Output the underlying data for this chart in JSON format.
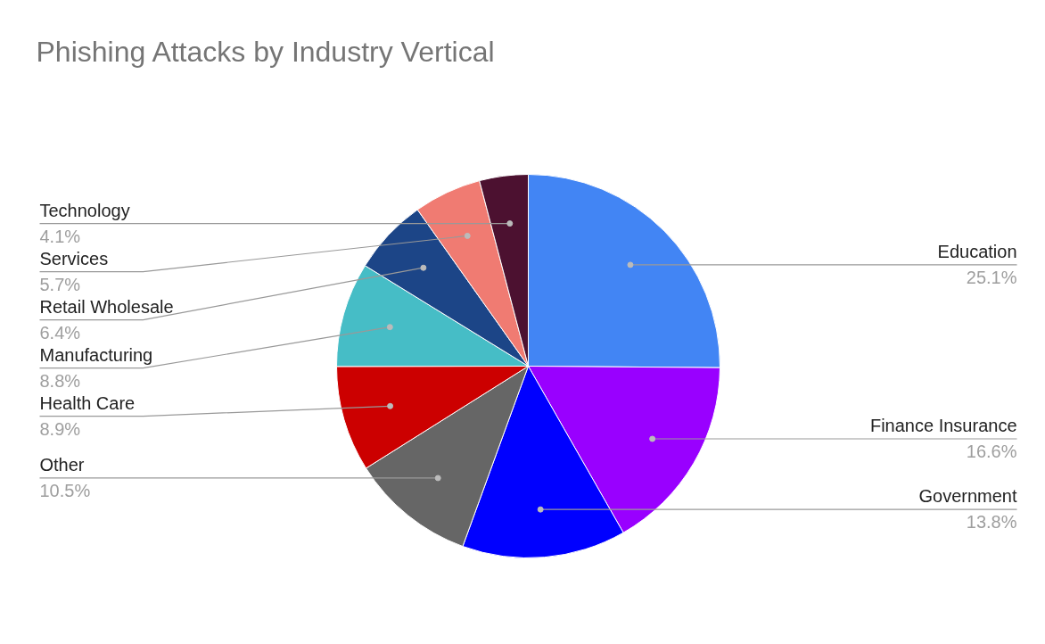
{
  "chart_data": {
    "type": "pie",
    "title": "Phishing Attacks by Industry Vertical",
    "categories": [
      "Education",
      "Finance Insurance",
      "Government",
      "Other",
      "Health Care",
      "Manufacturing",
      "Retail Wholesale",
      "Services",
      "Technology"
    ],
    "values": [
      25.1,
      16.6,
      13.8,
      10.5,
      8.9,
      8.8,
      6.4,
      5.7,
      4.1
    ],
    "value_labels": [
      "25.1%",
      "16.6%",
      "13.8%",
      "10.5%",
      "8.9%",
      "8.8%",
      "6.4%",
      "5.7%",
      "4.1%"
    ],
    "colors": [
      "#4285f4",
      "#9900ff",
      "#0000ff",
      "#666666",
      "#cc0000",
      "#46bdc6",
      "#1c4587",
      "#f07b72",
      "#4c1130"
    ]
  }
}
